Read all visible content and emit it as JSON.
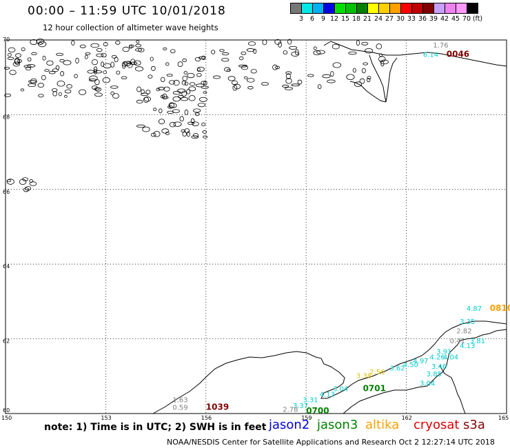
{
  "title": "00:00 – 11:59 UTC 10/01/2018",
  "subtitle": "12 hour collection of altimeter wave heights",
  "legend": {
    "colors": [
      "#777777",
      "#00e8e8",
      "#00b0f0",
      "#0000e0",
      "#00e000",
      "#00c000",
      "#008000",
      "#ffff00",
      "#ffd000",
      "#ffa000",
      "#ff0000",
      "#c00000",
      "#800000",
      "#c8a0ff",
      "#ee82ee",
      "#ff99ff",
      "#000000"
    ],
    "labels": [
      "3",
      "6",
      "9",
      "12",
      "15",
      "18",
      "21",
      "24",
      "27",
      "30",
      "33",
      "36",
      "39",
      "42",
      "45",
      "70",
      "(ft)"
    ]
  },
  "axes": {
    "lat_labels": [
      "70",
      "68",
      "66",
      "64",
      "62",
      "60"
    ],
    "lon_labels": [
      "150",
      "153",
      "156",
      "159",
      "162",
      "165"
    ]
  },
  "annotations": [
    {
      "text": "1.76",
      "color": "#808080",
      "lon": 162.8,
      "lat": 69.8
    },
    {
      "text": "6.14",
      "color": "#00cccc",
      "lon": 162.5,
      "lat": 69.55
    },
    {
      "text": "0046",
      "color": "#800000",
      "lon": 163.2,
      "lat": 69.55,
      "bold": true
    },
    {
      "text": "4.87",
      "color": "#00cccc",
      "lon": 163.8,
      "lat": 62.75
    },
    {
      "text": "3.35",
      "color": "#00cccc",
      "lon": 163.6,
      "lat": 62.4
    },
    {
      "text": "0810",
      "color": "#ffa000",
      "lon": 164.5,
      "lat": 62.75,
      "bold": true
    },
    {
      "text": "2.82",
      "color": "#808080",
      "lon": 163.5,
      "lat": 62.15
    },
    {
      "text": "0.41",
      "color": "#808080",
      "lon": 163.3,
      "lat": 61.88
    },
    {
      "text": "4.13",
      "color": "#00cccc",
      "lon": 163.6,
      "lat": 61.75
    },
    {
      "text": "3.81",
      "color": "#00cccc",
      "lon": 163.9,
      "lat": 61.88
    },
    {
      "text": "3.91",
      "color": "#00cccc",
      "lon": 162.9,
      "lat": 61.6
    },
    {
      "text": "4.04",
      "color": "#00cccc",
      "lon": 163.1,
      "lat": 61.45
    },
    {
      "text": "4.26",
      "color": "#00cccc",
      "lon": 162.7,
      "lat": 61.45
    },
    {
      "text": "4.97",
      "color": "#00cccc",
      "lon": 162.2,
      "lat": 61.35
    },
    {
      "text": "3.46",
      "color": "#00cccc",
      "lon": 162.75,
      "lat": 61.2
    },
    {
      "text": "4.50",
      "color": "#00cccc",
      "lon": 161.9,
      "lat": 61.25
    },
    {
      "text": "3.62",
      "color": "#00cccc",
      "lon": 161.5,
      "lat": 61.15
    },
    {
      "text": "3.85",
      "color": "#00cccc",
      "lon": 162.6,
      "lat": 61.0
    },
    {
      "text": "3.04",
      "color": "#00cccc",
      "lon": 162.4,
      "lat": 60.75
    },
    {
      "text": "2.56",
      "color": "#e0c000",
      "lon": 160.9,
      "lat": 61.05
    },
    {
      "text": "3.38",
      "color": "#e0c000",
      "lon": 160.5,
      "lat": 60.95
    },
    {
      "text": "0701",
      "color": "#008000",
      "lon": 160.7,
      "lat": 60.6,
      "bold": true
    },
    {
      "text": "3.04",
      "color": "#00cccc",
      "lon": 159.8,
      "lat": 60.6
    },
    {
      "text": "4.13",
      "color": "#00cccc",
      "lon": 159.4,
      "lat": 60.45
    },
    {
      "text": "3.31",
      "color": "#00cccc",
      "lon": 158.9,
      "lat": 60.3
    },
    {
      "text": "3.37",
      "color": "#00cccc",
      "lon": 158.6,
      "lat": 60.15
    },
    {
      "text": "2.78",
      "color": "#808080",
      "lon": 158.3,
      "lat": 60.05
    },
    {
      "text": "0700",
      "color": "#008000",
      "lon": 159.0,
      "lat": 60.0,
      "bold": true
    },
    {
      "text": "1.63",
      "color": "#808080",
      "lon": 155.0,
      "lat": 60.3
    },
    {
      "text": "0.59",
      "color": "#808080",
      "lon": 155.0,
      "lat": 60.1
    },
    {
      "text": "1039",
      "color": "#800000",
      "lon": 156.0,
      "lat": 60.1,
      "bold": true
    }
  ],
  "note": "note:  1) Time is in UTC;  2) SWH is in feet",
  "satellites": [
    {
      "name": "jason2",
      "color": "#0000e0"
    },
    {
      "name": "jason3",
      "color": "#008000"
    },
    {
      "name": "altika",
      "color": "#ffa000"
    },
    {
      "name": "cryosat",
      "color": "#e00000"
    },
    {
      "name": "s3a",
      "color": "#800000"
    }
  ],
  "footer": "NOAA/NESDIS Center for Satellite Applications and Research    Oct  2 12:27:14 UTC 2018"
}
